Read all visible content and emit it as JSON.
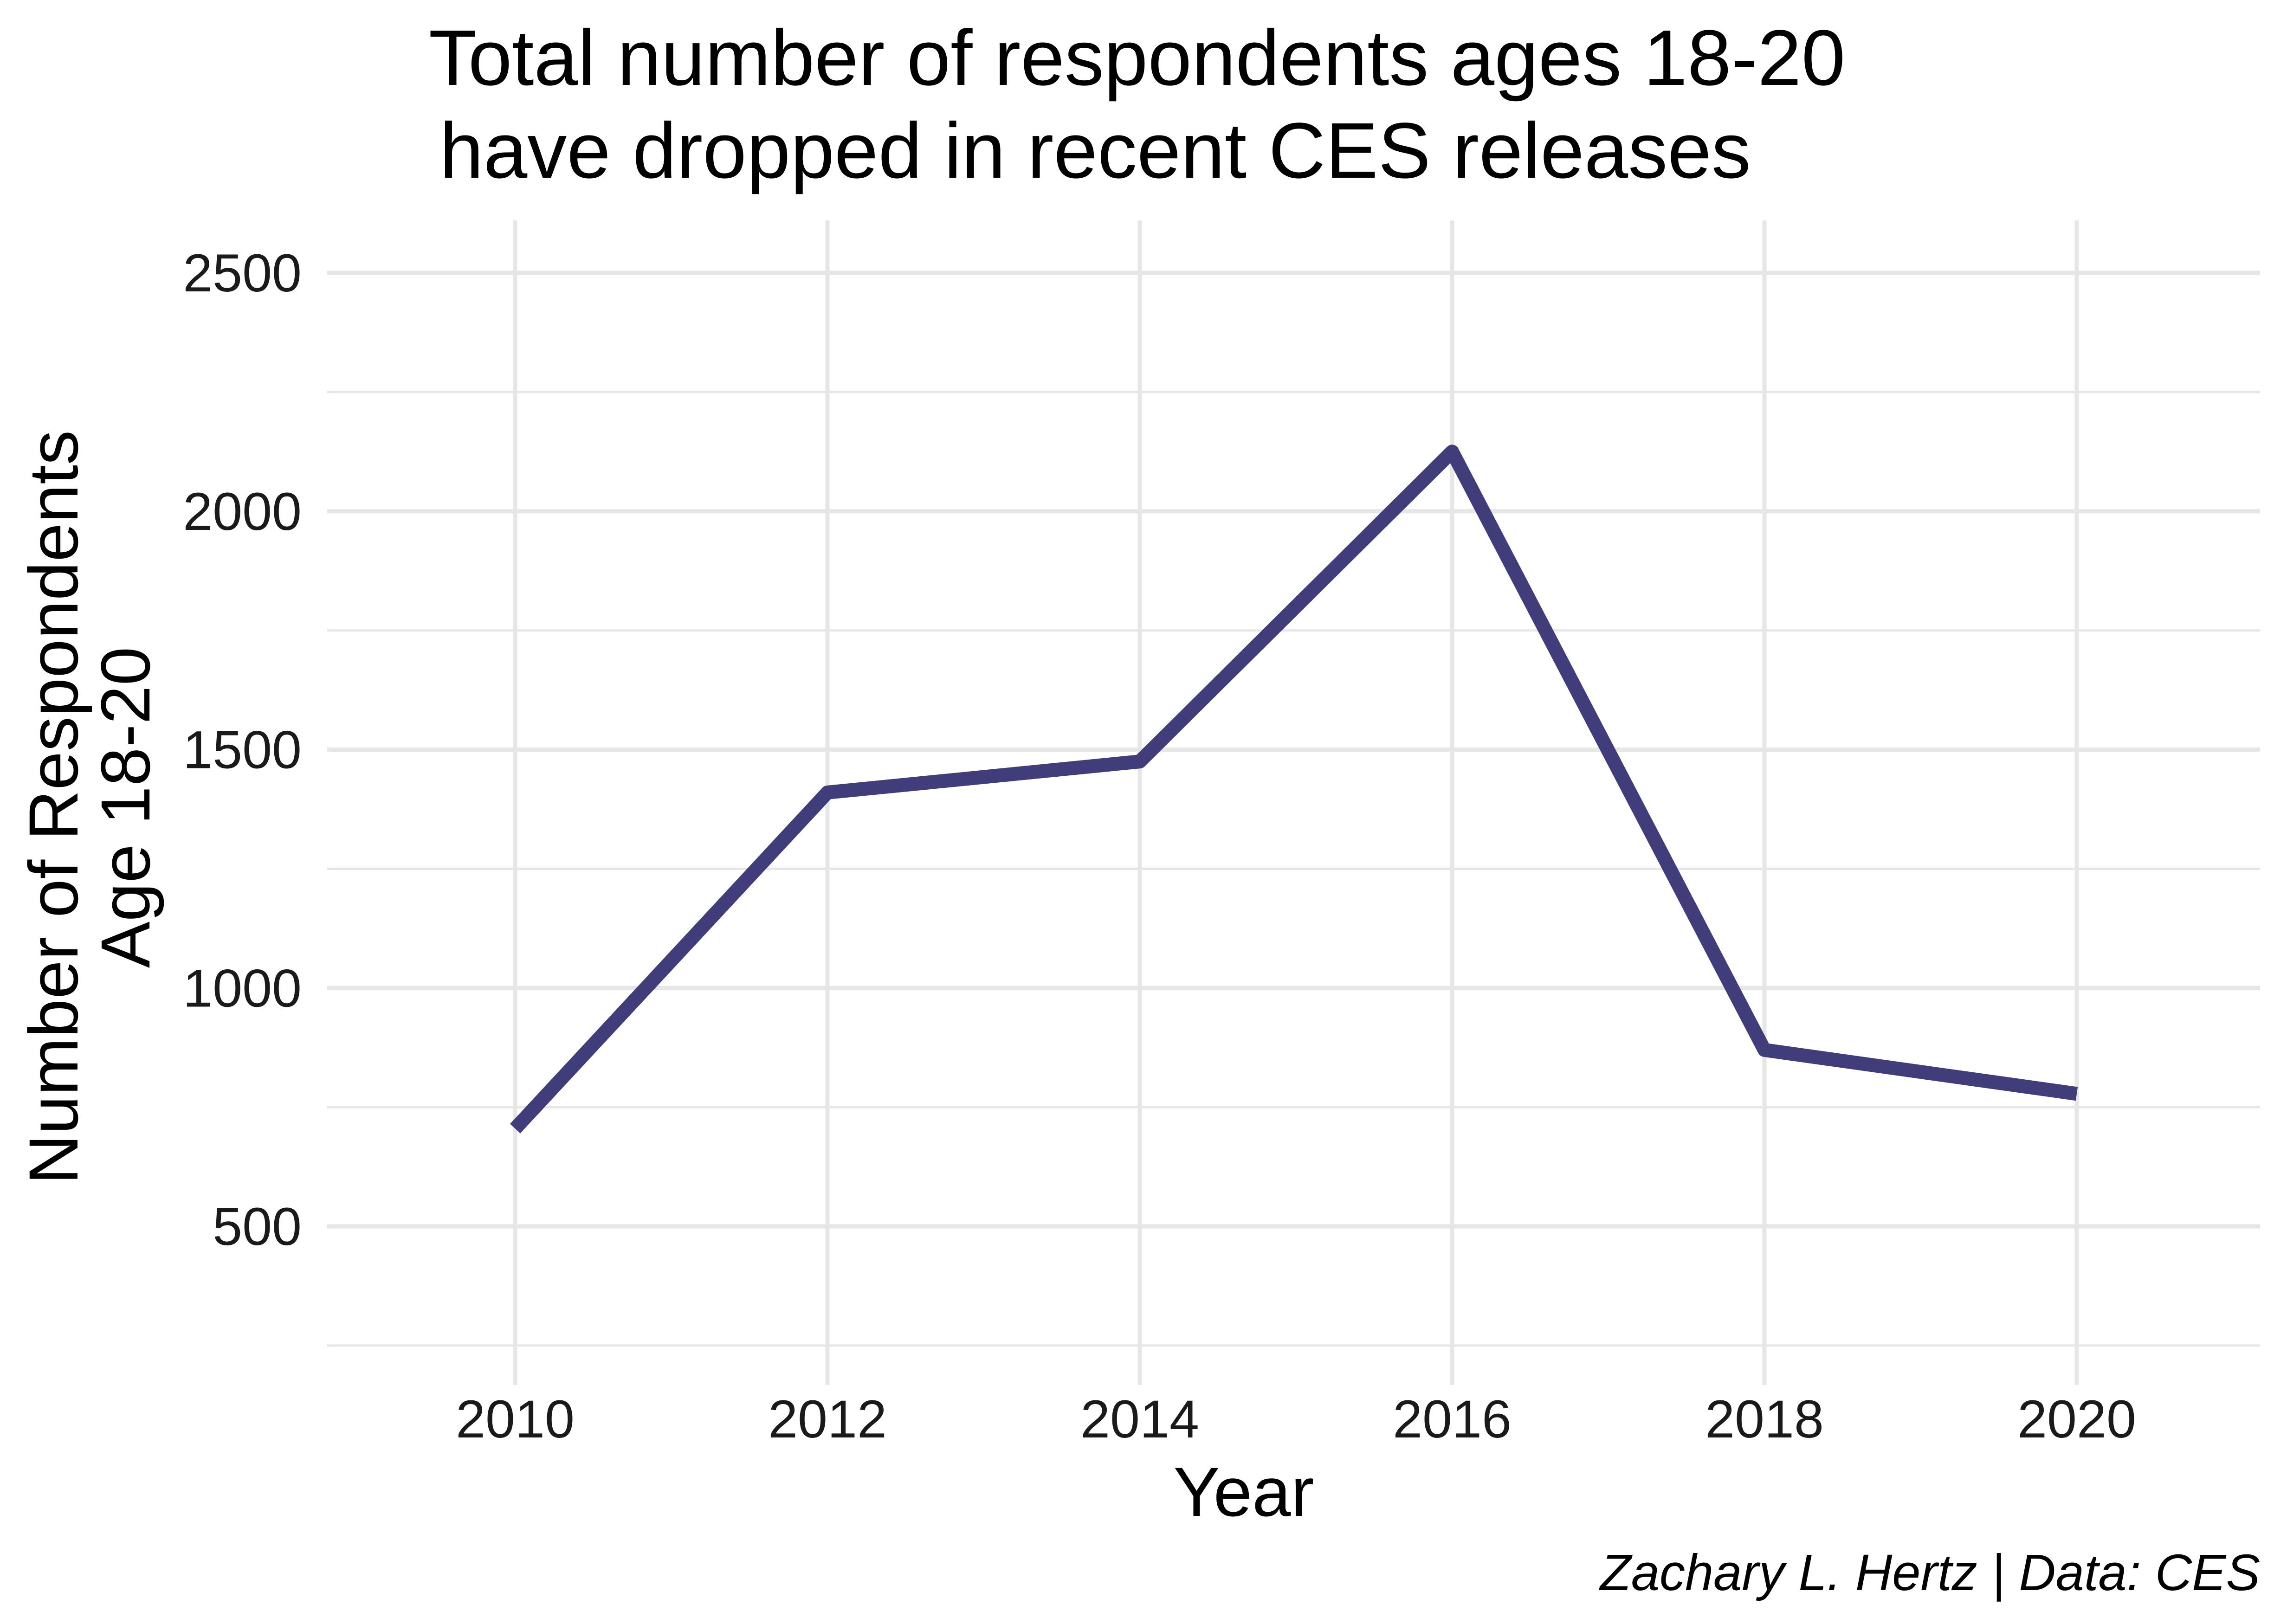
{
  "chart_data": {
    "type": "line",
    "title": [
      "Total number of respondents ages 18-20",
      "have dropped in recent CES releases"
    ],
    "xlabel": "Year",
    "ylabel": [
      "Number of Respondents",
      "Age 18-20"
    ],
    "caption": "Zachary L. Hertz | Data: CES",
    "x": [
      2010,
      2012,
      2014,
      2016,
      2018,
      2020
    ],
    "values": [
      705,
      1410,
      1475,
      2125,
      870,
      778
    ],
    "xticks": [
      2010,
      2012,
      2014,
      2016,
      2018,
      2020
    ],
    "yticks": [
      500,
      1000,
      1500,
      2000,
      2500
    ],
    "xlim": [
      2008.8,
      2021.2
    ],
    "ylim": [
      250,
      2610
    ],
    "grid": true,
    "legend": "none",
    "line_color": "#413d7b",
    "grid_color": "#e6e6e6"
  }
}
